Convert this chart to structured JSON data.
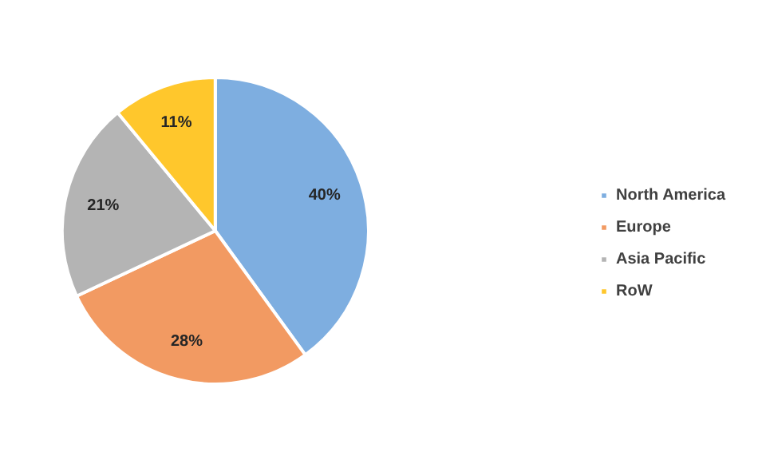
{
  "chart_data": {
    "type": "pie",
    "categories": [
      "North America",
      "Europe",
      "Asia Pacific",
      "RoW"
    ],
    "values": [
      40,
      28,
      21,
      11
    ],
    "colors": [
      "#7eaee0",
      "#f29a62",
      "#b4b4b4",
      "#ffc72c"
    ],
    "value_labels": [
      "40%",
      "28%",
      "21%",
      "11%"
    ],
    "legend": "right"
  }
}
